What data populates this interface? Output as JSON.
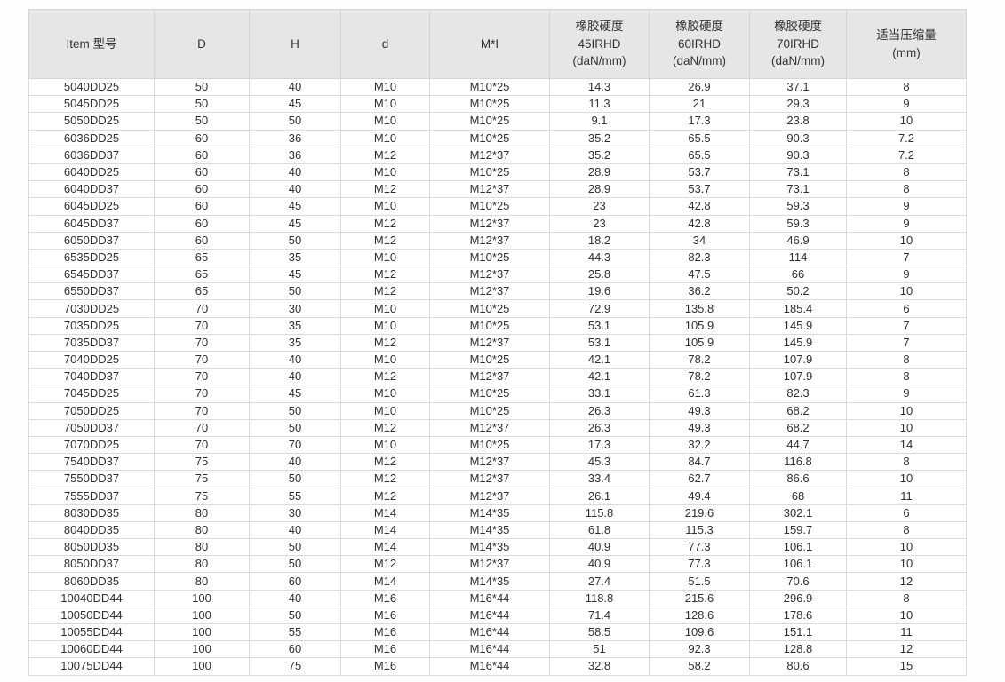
{
  "colors": {
    "header_background": "#e6e6e6",
    "body_background": "#ffffff",
    "grid_line": "#dbdbdb",
    "text": "#333333"
  },
  "table": {
    "columns": [
      {
        "key": "item",
        "lines": [
          "Item 型号"
        ]
      },
      {
        "key": "D",
        "lines": [
          "D"
        ]
      },
      {
        "key": "H",
        "lines": [
          "H"
        ]
      },
      {
        "key": "d",
        "lines": [
          "d"
        ]
      },
      {
        "key": "MI",
        "lines": [
          "M*I"
        ]
      },
      {
        "key": "irhd45",
        "lines": [
          "橡胶硬度",
          "45IRHD",
          "(daN/mm)"
        ]
      },
      {
        "key": "irhd60",
        "lines": [
          "橡胶硬度",
          "60IRHD",
          "(daN/mm)"
        ]
      },
      {
        "key": "irhd70",
        "lines": [
          "橡胶硬度",
          "70IRHD",
          "(daN/mm)"
        ]
      },
      {
        "key": "compression",
        "lines": [
          "适当压缩量",
          "(mm)"
        ]
      }
    ],
    "rows": [
      [
        "5040DD25",
        "50",
        "40",
        "M10",
        "M10*25",
        "14.3",
        "26.9",
        "37.1",
        "8"
      ],
      [
        "5045DD25",
        "50",
        "45",
        "M10",
        "M10*25",
        "11.3",
        "21",
        "29.3",
        "9"
      ],
      [
        "5050DD25",
        "50",
        "50",
        "M10",
        "M10*25",
        "9.1",
        "17.3",
        "23.8",
        "10"
      ],
      [
        "6036DD25",
        "60",
        "36",
        "M10",
        "M10*25",
        "35.2",
        "65.5",
        "90.3",
        "7.2"
      ],
      [
        "6036DD37",
        "60",
        "36",
        "M12",
        "M12*37",
        "35.2",
        "65.5",
        "90.3",
        "7.2"
      ],
      [
        "6040DD25",
        "60",
        "40",
        "M10",
        "M10*25",
        "28.9",
        "53.7",
        "73.1",
        "8"
      ],
      [
        "6040DD37",
        "60",
        "40",
        "M12",
        "M12*37",
        "28.9",
        "53.7",
        "73.1",
        "8"
      ],
      [
        "6045DD25",
        "60",
        "45",
        "M10",
        "M10*25",
        "23",
        "42.8",
        "59.3",
        "9"
      ],
      [
        "6045DD37",
        "60",
        "45",
        "M12",
        "M12*37",
        "23",
        "42.8",
        "59.3",
        "9"
      ],
      [
        "6050DD37",
        "60",
        "50",
        "M12",
        "M12*37",
        "18.2",
        "34",
        "46.9",
        "10"
      ],
      [
        "6535DD25",
        "65",
        "35",
        "M10",
        "M10*25",
        "44.3",
        "82.3",
        "114",
        "7"
      ],
      [
        "6545DD37",
        "65",
        "45",
        "M12",
        "M12*37",
        "25.8",
        "47.5",
        "66",
        "9"
      ],
      [
        "6550DD37",
        "65",
        "50",
        "M12",
        "M12*37",
        "19.6",
        "36.2",
        "50.2",
        "10"
      ],
      [
        "7030DD25",
        "70",
        "30",
        "M10",
        "M10*25",
        "72.9",
        "135.8",
        "185.4",
        "6"
      ],
      [
        "7035DD25",
        "70",
        "35",
        "M10",
        "M10*25",
        "53.1",
        "105.9",
        "145.9",
        "7"
      ],
      [
        "7035DD37",
        "70",
        "35",
        "M12",
        "M12*37",
        "53.1",
        "105.9",
        "145.9",
        "7"
      ],
      [
        "7040DD25",
        "70",
        "40",
        "M10",
        "M10*25",
        "42.1",
        "78.2",
        "107.9",
        "8"
      ],
      [
        "7040DD37",
        "70",
        "40",
        "M12",
        "M12*37",
        "42.1",
        "78.2",
        "107.9",
        "8"
      ],
      [
        "7045DD25",
        "70",
        "45",
        "M10",
        "M10*25",
        "33.1",
        "61.3",
        "82.3",
        "9"
      ],
      [
        "7050DD25",
        "70",
        "50",
        "M10",
        "M10*25",
        "26.3",
        "49.3",
        "68.2",
        "10"
      ],
      [
        "7050DD37",
        "70",
        "50",
        "M12",
        "M12*37",
        "26.3",
        "49.3",
        "68.2",
        "10"
      ],
      [
        "7070DD25",
        "70",
        "70",
        "M10",
        "M10*25",
        "17.3",
        "32.2",
        "44.7",
        "14"
      ],
      [
        "7540DD37",
        "75",
        "40",
        "M12",
        "M12*37",
        "45.3",
        "84.7",
        "116.8",
        "8"
      ],
      [
        "7550DD37",
        "75",
        "50",
        "M12",
        "M12*37",
        "33.4",
        "62.7",
        "86.6",
        "10"
      ],
      [
        "7555DD37",
        "75",
        "55",
        "M12",
        "M12*37",
        "26.1",
        "49.4",
        "68",
        "11"
      ],
      [
        "8030DD35",
        "80",
        "30",
        "M14",
        "M14*35",
        "115.8",
        "219.6",
        "302.1",
        "6"
      ],
      [
        "8040DD35",
        "80",
        "40",
        "M14",
        "M14*35",
        "61.8",
        "115.3",
        "159.7",
        "8"
      ],
      [
        "8050DD35",
        "80",
        "50",
        "M14",
        "M14*35",
        "40.9",
        "77.3",
        "106.1",
        "10"
      ],
      [
        "8050DD37",
        "80",
        "50",
        "M12",
        "M12*37",
        "40.9",
        "77.3",
        "106.1",
        "10"
      ],
      [
        "8060DD35",
        "80",
        "60",
        "M14",
        "M14*35",
        "27.4",
        "51.5",
        "70.6",
        "12"
      ],
      [
        "10040DD44",
        "100",
        "40",
        "M16",
        "M16*44",
        "118.8",
        "215.6",
        "296.9",
        "8"
      ],
      [
        "10050DD44",
        "100",
        "50",
        "M16",
        "M16*44",
        "71.4",
        "128.6",
        "178.6",
        "10"
      ],
      [
        "10055DD44",
        "100",
        "55",
        "M16",
        "M16*44",
        "58.5",
        "109.6",
        "151.1",
        "11"
      ],
      [
        "10060DD44",
        "100",
        "60",
        "M16",
        "M16*44",
        "51",
        "92.3",
        "128.8",
        "12"
      ],
      [
        "10075DD44",
        "100",
        "75",
        "M16",
        "M16*44",
        "32.8",
        "58.2",
        "80.6",
        "15"
      ]
    ]
  }
}
